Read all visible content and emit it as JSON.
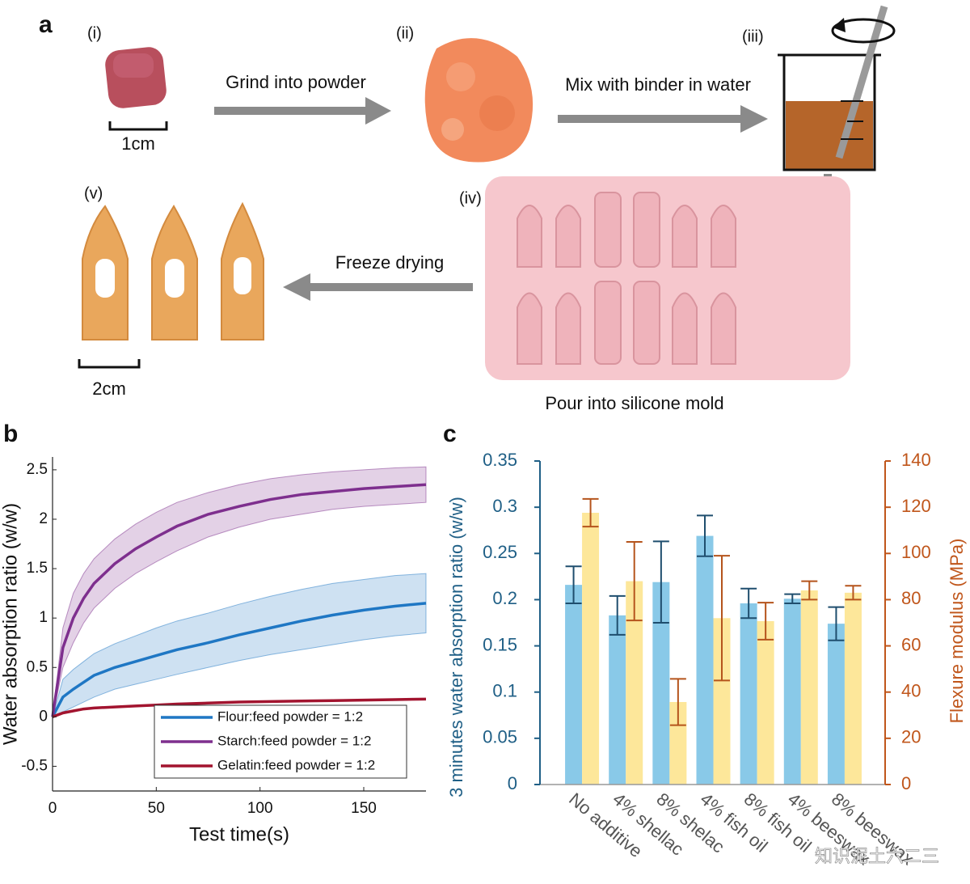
{
  "panel_labels": [
    "a",
    "b",
    "c"
  ],
  "diagram": {
    "stage_labels": [
      "(i)",
      "(ii)",
      "(iii)",
      "(iv)",
      "(v)"
    ],
    "steps": [
      "Grind into powder",
      "Mix with binder in water",
      "Pour into silicone mold",
      "Freeze drying"
    ],
    "scale_bars": [
      "1cm",
      "2cm"
    ]
  },
  "watermark": "知识泥土六二三",
  "chart_data": [
    {
      "type": "line",
      "xlabel": "Test time(s)",
      "ylabel": "Water absorption ratio (w/w)",
      "x": [
        0,
        5,
        10,
        15,
        20,
        30,
        40,
        50,
        60,
        75,
        90,
        105,
        120,
        135,
        150,
        165,
        180
      ],
      "xlim": [
        0,
        180
      ],
      "xticks": [
        0,
        50,
        100,
        150
      ],
      "ylim": [
        -0.75,
        2.63
      ],
      "yticks": [
        -0.5,
        0,
        0.5,
        1,
        1.5,
        2,
        2.5
      ],
      "legend": "lower right",
      "series": [
        {
          "name": "Flour:feed powder = 1:2",
          "color": "#1f77c4",
          "values": [
            0,
            0.2,
            0.28,
            0.35,
            0.42,
            0.5,
            0.56,
            0.62,
            0.68,
            0.75,
            0.83,
            0.9,
            0.97,
            1.03,
            1.08,
            1.12,
            1.15
          ],
          "band_upper": [
            0,
            0.38,
            0.48,
            0.56,
            0.64,
            0.74,
            0.82,
            0.9,
            0.97,
            1.05,
            1.14,
            1.22,
            1.29,
            1.35,
            1.39,
            1.43,
            1.45
          ],
          "band_lower": [
            0,
            0.05,
            0.1,
            0.15,
            0.2,
            0.28,
            0.33,
            0.38,
            0.43,
            0.5,
            0.57,
            0.63,
            0.68,
            0.73,
            0.78,
            0.82,
            0.85
          ]
        },
        {
          "name": "Starch:feed powder = 1:2",
          "color": "#7e2f8e",
          "values": [
            0,
            0.7,
            1.0,
            1.2,
            1.35,
            1.55,
            1.7,
            1.82,
            1.93,
            2.05,
            2.13,
            2.2,
            2.25,
            2.28,
            2.31,
            2.33,
            2.35
          ],
          "band_upper": [
            0,
            0.9,
            1.25,
            1.45,
            1.6,
            1.8,
            1.95,
            2.07,
            2.17,
            2.27,
            2.35,
            2.41,
            2.45,
            2.48,
            2.5,
            2.52,
            2.53
          ],
          "band_lower": [
            0,
            0.5,
            0.75,
            0.95,
            1.1,
            1.3,
            1.45,
            1.57,
            1.68,
            1.82,
            1.92,
            2.0,
            2.05,
            2.1,
            2.13,
            2.15,
            2.17
          ]
        },
        {
          "name": "Gelatin:feed powder = 1:2",
          "color": "#a2142f",
          "values": [
            0,
            0.04,
            0.06,
            0.08,
            0.09,
            0.1,
            0.11,
            0.12,
            0.13,
            0.14,
            0.15,
            0.155,
            0.16,
            0.165,
            0.17,
            0.175,
            0.18
          ]
        }
      ]
    },
    {
      "type": "bar",
      "ylabel": "3 minutes water absorption ratio (w/w)",
      "y2label": "Flexure modulus (MPa)",
      "ylabel_color": "#1f5f86",
      "y2label_color": "#c0561b",
      "categories": [
        "No additive",
        "4% shellac",
        "8% shelac",
        "4% fish oil",
        "8% fish oil",
        "4% beeswax",
        "8% beeswax"
      ],
      "ylim": [
        0,
        0.35
      ],
      "yticks": [
        0,
        0.05,
        0.1,
        0.15,
        0.2,
        0.25,
        0.3,
        0.35
      ],
      "y2lim": [
        0,
        140
      ],
      "y2ticks": [
        0,
        20,
        40,
        60,
        80,
        100,
        120,
        140
      ],
      "series": [
        {
          "color": "#89c9e8",
          "error_color": "#1f4e6e",
          "axis": "y",
          "values": [
            0.216,
            0.183,
            0.219,
            0.269,
            0.196,
            0.201,
            0.174
          ],
          "errors": [
            0.02,
            0.021,
            0.044,
            0.022,
            0.016,
            0.005,
            0.018
          ]
        },
        {
          "color": "#fde79a",
          "error_color": "#b5541c",
          "axis": "y2",
          "values": [
            117.6,
            88,
            35.7,
            72,
            70.7,
            84,
            83
          ],
          "errors": [
            6,
            17,
            10,
            27,
            8,
            4,
            3
          ]
        }
      ]
    }
  ]
}
